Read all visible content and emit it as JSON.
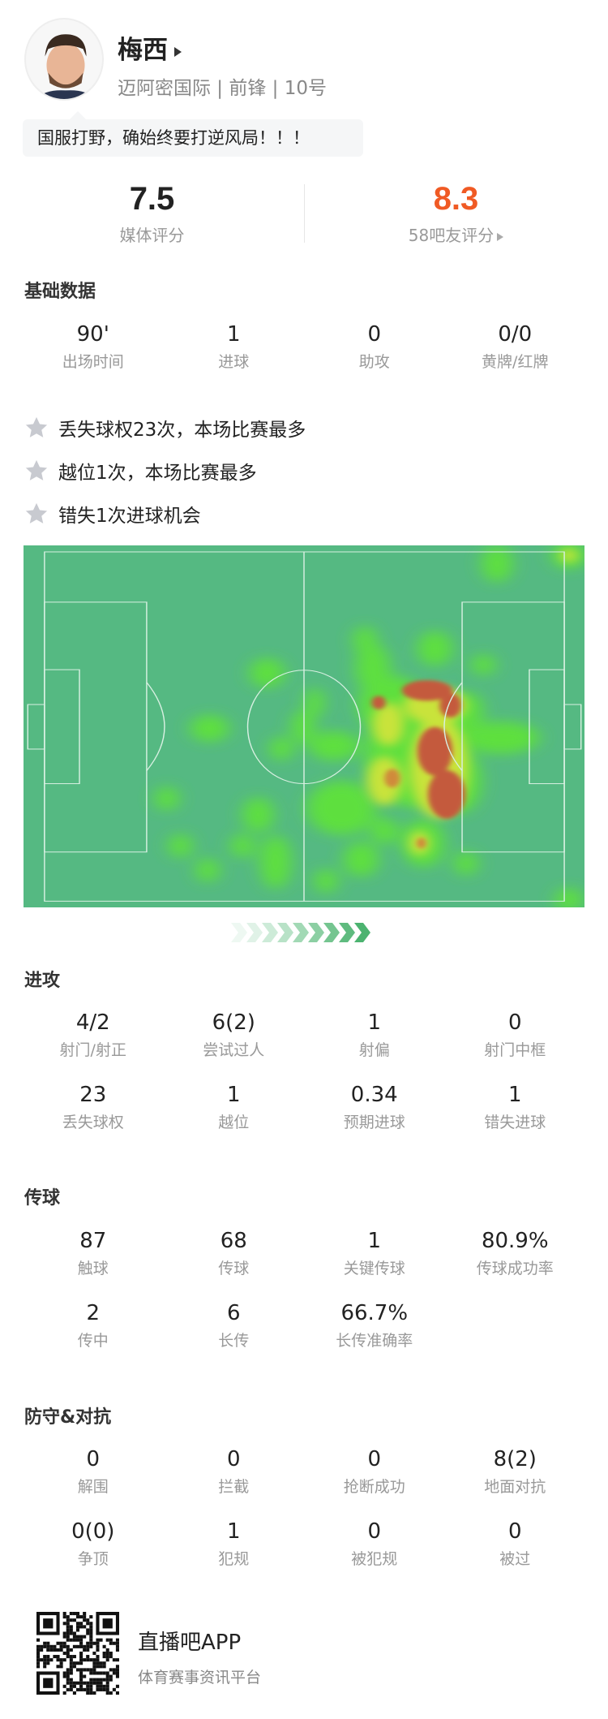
{
  "player": {
    "name": "梅西",
    "subtitle": "迈阿密国际 | 前锋 | 10号",
    "quote": "国服打野，确始终要打逆风局！！！"
  },
  "ratings": [
    {
      "value": "7.5",
      "label": "媒体评分",
      "color": "#222222"
    },
    {
      "value": "8.3",
      "label": "58吧友评分",
      "color": "#f05a24"
    }
  ],
  "basic": {
    "title": "基础数据",
    "stats": [
      {
        "v": "90'",
        "l": "出场时间"
      },
      {
        "v": "1",
        "l": "进球"
      },
      {
        "v": "0",
        "l": "助攻"
      },
      {
        "v": "0/0",
        "l": "黄牌/红牌"
      }
    ]
  },
  "highlights": [
    "丢失球权23次，本场比赛最多",
    "越位1次，本场比赛最多",
    "错失1次进球机会"
  ],
  "heatmap": {
    "pitch_color": "#55b982",
    "attack_direction": "right"
  },
  "attack": {
    "title": "进攻",
    "stats": [
      {
        "v": "4/2",
        "l": "射门/射正"
      },
      {
        "v": "6(2)",
        "l": "尝试过人"
      },
      {
        "v": "1",
        "l": "射偏"
      },
      {
        "v": "0",
        "l": "射门中框"
      },
      {
        "v": "23",
        "l": "丢失球权"
      },
      {
        "v": "1",
        "l": "越位"
      },
      {
        "v": "0.34",
        "l": "预期进球"
      },
      {
        "v": "1",
        "l": "错失进球"
      }
    ]
  },
  "passing": {
    "title": "传球",
    "stats": [
      {
        "v": "87",
        "l": "触球"
      },
      {
        "v": "68",
        "l": "传球"
      },
      {
        "v": "1",
        "l": "关键传球"
      },
      {
        "v": "80.9%",
        "l": "传球成功率"
      },
      {
        "v": "2",
        "l": "传中"
      },
      {
        "v": "6",
        "l": "长传"
      },
      {
        "v": "66.7%",
        "l": "长传准确率"
      }
    ]
  },
  "defense": {
    "title": "防守&对抗",
    "stats": [
      {
        "v": "0",
        "l": "解围"
      },
      {
        "v": "0",
        "l": "拦截"
      },
      {
        "v": "0",
        "l": "抢断成功"
      },
      {
        "v": "8(2)",
        "l": "地面对抗"
      },
      {
        "v": "0(0)",
        "l": "争顶"
      },
      {
        "v": "1",
        "l": "犯规"
      },
      {
        "v": "0",
        "l": "被犯规"
      },
      {
        "v": "0",
        "l": "被过"
      }
    ]
  },
  "footer": {
    "app_name": "直播吧APP",
    "tagline": "体育赛事资讯平台"
  }
}
